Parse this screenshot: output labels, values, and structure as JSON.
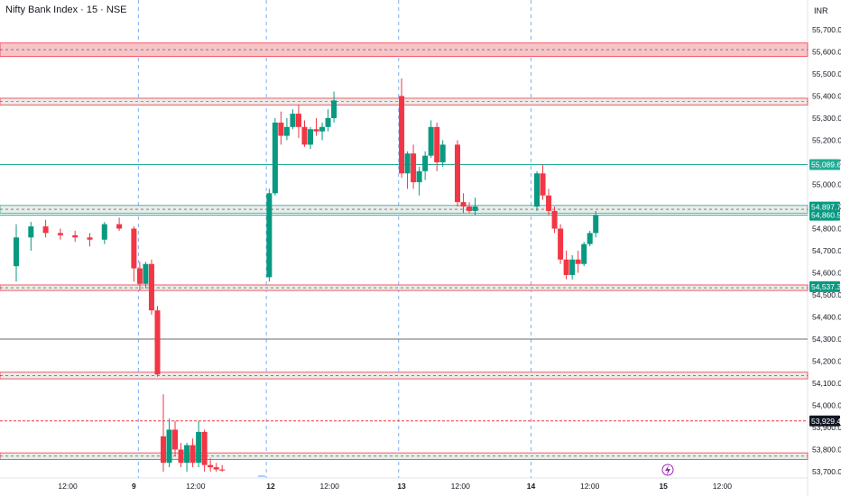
{
  "header": {
    "title": "Nifty Bank Index · 15 · NSE",
    "currency": "INR"
  },
  "colors": {
    "bull": "#089981",
    "bear": "#f23645",
    "grid": "#5b9cf6",
    "zone_fill": "#f7c5c8",
    "zone_border": "#f23645",
    "sr_green": "#22ab94",
    "sr_red": "#f23645",
    "axis_text": "#131722"
  },
  "chart_data": {
    "type": "candlestick",
    "title": "Nifty Bank Index · 15 · NSE",
    "y_axis": {
      "ticks": [
        "55,700.00",
        "55,600.00",
        "55,500.00",
        "55,400.00",
        "55,300.00",
        "55,200.00",
        "55,100.00",
        "55,000.00",
        "54,900.00",
        "54,800.00",
        "54,700.00",
        "54,600.00",
        "54,500.00",
        "54,400.00",
        "54,300.00",
        "54,200.00",
        "54,100.00",
        "54,000.00",
        "53,900.00",
        "53,800.00",
        "53,700.00"
      ],
      "range": [
        53680,
        55760
      ]
    },
    "x_axis": {
      "ticks": [
        {
          "label": "12:00",
          "bold": false,
          "idx": 3.5
        },
        {
          "label": "9",
          "bold": true,
          "idx": 8
        },
        {
          "label": "12:00",
          "bold": false,
          "idx": 12.2
        },
        {
          "label": "12",
          "bold": true,
          "idx": 17.3
        },
        {
          "label": "12:00",
          "bold": false,
          "idx": 21.3
        },
        {
          "label": "13",
          "bold": true,
          "idx": 26.2
        },
        {
          "label": "12:00",
          "bold": false,
          "idx": 30.2
        },
        {
          "label": "14",
          "bold": true,
          "idx": 35
        },
        {
          "label": "12:00",
          "bold": false,
          "idx": 39
        },
        {
          "label": "15",
          "bold": true,
          "idx": 44
        },
        {
          "label": "12:00",
          "bold": false,
          "idx": 48
        }
      ],
      "day_separators": [
        8.3,
        17,
        26,
        35
      ]
    },
    "price_badges": [
      {
        "label": "55,089.65",
        "value": 55089.65,
        "color": "#22ab94"
      },
      {
        "label": "54,897.70",
        "value": 54897.7,
        "color": "#089981"
      },
      {
        "label": "54,860.55",
        "value": 54860.55,
        "color": "#089981"
      },
      {
        "label": "54,537.30",
        "value": 54537.3,
        "color": "#089981"
      },
      {
        "label": "53,929.45",
        "value": 53929.45,
        "color": "#131722"
      }
    ],
    "zones": [
      {
        "low": 55580,
        "high": 55640,
        "fill": "#f7c5c8",
        "border": "#f23645",
        "dashed": true
      },
      {
        "low": 55360,
        "high": 55390,
        "fill": "#e9ece8",
        "border": "#f23645",
        "dashed": true
      },
      {
        "low": 54870,
        "high": 54905,
        "fill": "#e9ece8",
        "border": "#22ab94",
        "dashed": true
      },
      {
        "low": 54520,
        "high": 54545,
        "fill": "#e9ece8",
        "border": "#f23645",
        "dashed": true
      },
      {
        "low": 54120,
        "high": 54150,
        "fill": "#e9ece8",
        "border": "#f23645",
        "dashed": true
      },
      {
        "low": 53755,
        "high": 53785,
        "fill": "#e9ece8",
        "border": "#f23645",
        "dashed": true
      }
    ],
    "levels": [
      {
        "value": 55089.65,
        "color": "#22ab94",
        "style": "solid"
      },
      {
        "value": 54860.55,
        "color": "#22ab94",
        "style": "solid"
      },
      {
        "value": 54300,
        "color": "#6b6b6b",
        "style": "solid"
      },
      {
        "value": 53929.45,
        "color": "#f23645",
        "style": "dashed"
      }
    ],
    "candles": [
      [
        54630,
        54820,
        54560,
        54760
      ],
      [
        54760,
        54830,
        54700,
        54810
      ],
      [
        54810,
        54840,
        54760,
        54780
      ],
      [
        54780,
        54800,
        54750,
        54770
      ],
      [
        54770,
        54790,
        54740,
        54760
      ],
      [
        54760,
        54780,
        54720,
        54750
      ],
      [
        54750,
        54830,
        54730,
        54820
      ],
      [
        54820,
        54850,
        54790,
        54800
      ],
      [
        54800,
        54810,
        54560,
        54620
      ],
      [
        54620,
        54650,
        54520,
        54550
      ],
      [
        54550,
        54650,
        54530,
        54640
      ],
      [
        54640,
        54660,
        54410,
        54430
      ],
      [
        54430,
        54450,
        54130,
        54140
      ],
      [
        53860,
        54050,
        53700,
        53740
      ],
      [
        53740,
        53940,
        53720,
        53890
      ],
      [
        53890,
        53930,
        53770,
        53800
      ],
      [
        53800,
        53830,
        53720,
        53740
      ],
      [
        53740,
        53830,
        53700,
        53820
      ],
      [
        53820,
        53850,
        53720,
        53740
      ],
      [
        53740,
        53930,
        53720,
        53880
      ],
      [
        53880,
        53890,
        53700,
        53730
      ],
      [
        53730,
        53760,
        53700,
        53720
      ],
      [
        53720,
        53740,
        53700,
        53710
      ],
      [
        53710,
        53730,
        53700,
        53705
      ],
      [
        54580,
        54980,
        54560,
        54960
      ],
      [
        54960,
        55300,
        54950,
        55280
      ],
      [
        55280,
        55330,
        55180,
        55220
      ],
      [
        55220,
        55300,
        55200,
        55260
      ],
      [
        55260,
        55340,
        55250,
        55320
      ],
      [
        55320,
        55360,
        55210,
        55260
      ],
      [
        55260,
        55290,
        55170,
        55180
      ],
      [
        55180,
        55260,
        55160,
        55250
      ],
      [
        55250,
        55300,
        55220,
        55240
      ],
      [
        55240,
        55280,
        55200,
        55260
      ],
      [
        55260,
        55340,
        55240,
        55300
      ],
      [
        55300,
        55420,
        55280,
        55380
      ],
      [
        55400,
        55480,
        55030,
        55050
      ],
      [
        55050,
        55150,
        54980,
        55140
      ],
      [
        55140,
        55180,
        54980,
        55010
      ],
      [
        55010,
        55080,
        54950,
        55060
      ],
      [
        55060,
        55150,
        55020,
        55130
      ],
      [
        55130,
        55290,
        55120,
        55260
      ],
      [
        55260,
        55280,
        55060,
        55100
      ],
      [
        55100,
        55200,
        55080,
        55180
      ],
      [
        55180,
        55200,
        54900,
        54920
      ],
      [
        54920,
        54960,
        54870,
        54900
      ],
      [
        54900,
        54920,
        54870,
        54880
      ],
      [
        54880,
        54940,
        54860,
        54900
      ],
      [
        54900,
        55060,
        54880,
        55050
      ],
      [
        55050,
        55090,
        54930,
        54950
      ],
      [
        54950,
        54980,
        54860,
        54880
      ],
      [
        54880,
        54900,
        54780,
        54800
      ],
      [
        54800,
        54820,
        54640,
        54660
      ],
      [
        54660,
        54700,
        54570,
        54590
      ],
      [
        54590,
        54680,
        54570,
        54660
      ],
      [
        54660,
        54700,
        54600,
        54640
      ],
      [
        54640,
        54740,
        54630,
        54730
      ],
      [
        54730,
        54790,
        54720,
        54780
      ],
      [
        54780,
        54880,
        54760,
        54860
      ]
    ],
    "candle_x_index": [
      0,
      1,
      2,
      3,
      4,
      5,
      6,
      7,
      8,
      8.4,
      8.8,
      9.2,
      9.6,
      10,
      10.4,
      10.8,
      11.2,
      11.6,
      12,
      12.4,
      12.8,
      13.2,
      13.6,
      14,
      17.2,
      17.6,
      18,
      18.4,
      18.8,
      19.2,
      19.6,
      20,
      20.4,
      20.8,
      21.2,
      21.6,
      26.2,
      26.6,
      27,
      27.4,
      27.8,
      28.2,
      28.6,
      29,
      30,
      30.4,
      30.8,
      31.2,
      35.4,
      35.8,
      36.2,
      36.6,
      37,
      37.4,
      37.8,
      38.2,
      38.6,
      39,
      39.4
    ]
  }
}
